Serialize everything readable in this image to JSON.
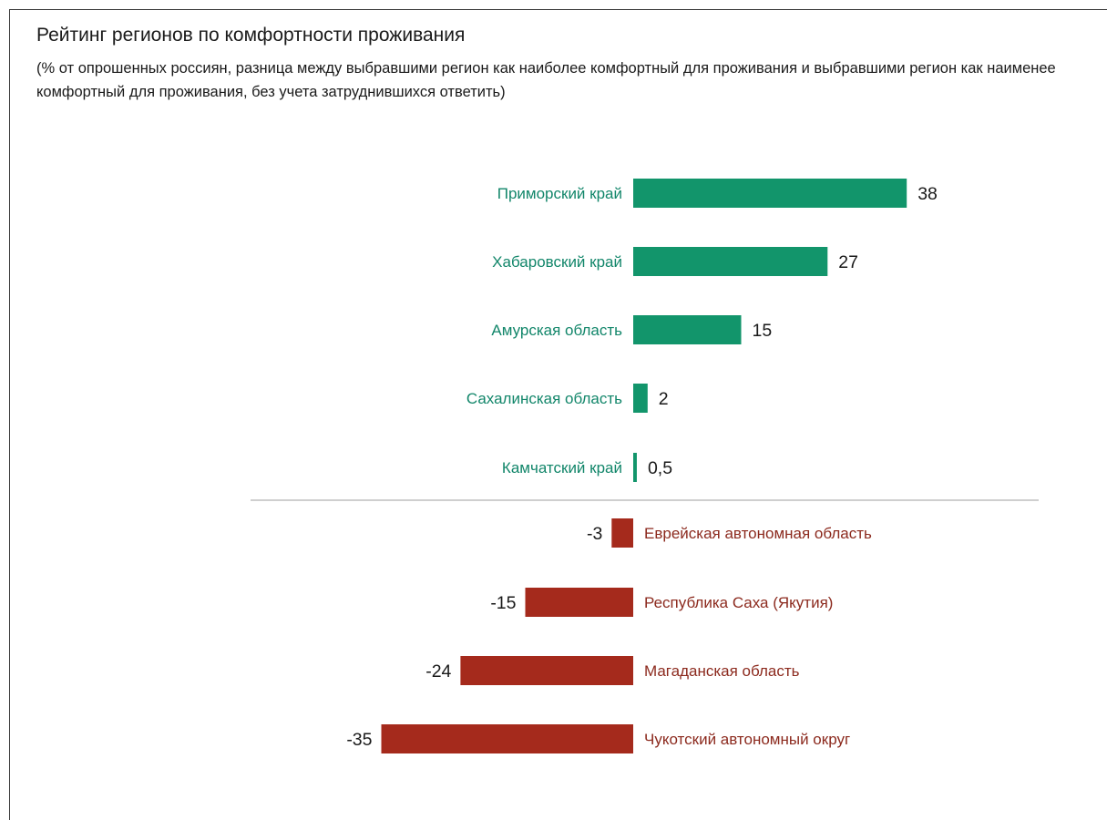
{
  "chart_data": {
    "type": "bar",
    "orientation": "horizontal",
    "title": "Рейтинг регионов по комфортности проживания",
    "subtitle": "(% от опрошенных россиян, разница между выбравшими регион как наиболее комфортный для проживания и выбравшими регион как наименее комфортный для проживания, без учета затруднившихся ответить)",
    "categories": [
      "Приморский край",
      "Хабаровский край",
      "Амурская область",
      "Сахалинская область",
      "Камчатский край",
      "Еврейская автономная область",
      "Республика Саха (Якутия)",
      "Магаданская область",
      "Чукотский автономный округ"
    ],
    "values": [
      38,
      27,
      15,
      2,
      0.5,
      -3,
      -15,
      -24,
      -35
    ],
    "value_labels": [
      "38",
      "27",
      "15",
      "2",
      "0,5",
      "-3",
      "-15",
      "-24",
      "-35"
    ],
    "colors": {
      "positive": "#12956b",
      "negative": "#a52a1c",
      "divider": "#bfbfbf",
      "positive_label": "#12866a",
      "negative_label": "#8c2a1e"
    },
    "grid": false,
    "legend": "none"
  }
}
